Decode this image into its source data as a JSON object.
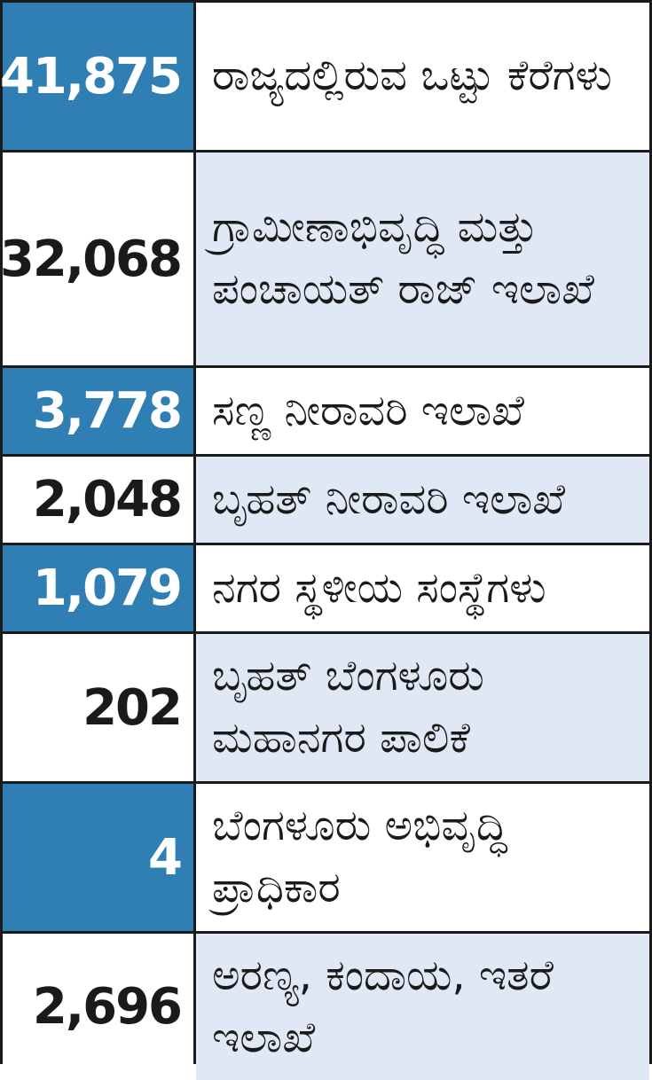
{
  "colors": {
    "highlight_blue": "#2f7fb5",
    "light_blue": "#dfe8f4",
    "border": "#1a1a1a",
    "text": "#1a1a1a"
  },
  "rows": [
    {
      "value": "41,875",
      "label": "ರಾಜ್ಯದಲ್ಲಿರುವ ಒಟ್ಟು ಕೆರೆಗಳು"
    },
    {
      "value": "32,068",
      "label": "ಗ್ರಾಮೀಣಾಭಿವೃದ್ಧಿ ಮತ್ತು ಪಂಚಾಯತ್ ರಾಜ್ ಇಲಾಖೆ"
    },
    {
      "value": "3,778",
      "label": "ಸಣ್ಣ ನೀರಾವರಿ ಇಲಾಖೆ"
    },
    {
      "value": "2,048",
      "label": "ಬೃಹತ್ ನೀರಾವರಿ ಇಲಾಖೆ"
    },
    {
      "value": "1,079",
      "label": "ನಗರ ಸ್ಥಳೀಯ ಸಂಸ್ಥೆಗಳು"
    },
    {
      "value": "202",
      "label": "ಬೃಹತ್ ಬೆಂಗಳೂರು ಮಹಾನಗರ ಪಾಲಿಕೆ"
    },
    {
      "value": "4",
      "label": "ಬೆಂಗಳೂರು ಅಭಿವೃದ್ಧಿ ಪ್ರಾಧಿಕಾರ"
    },
    {
      "value": "2,696",
      "label": "ಅರಣ್ಯ, ಕಂದಾಯ, ಇತರೆ ಇಲಾಖೆ"
    }
  ]
}
